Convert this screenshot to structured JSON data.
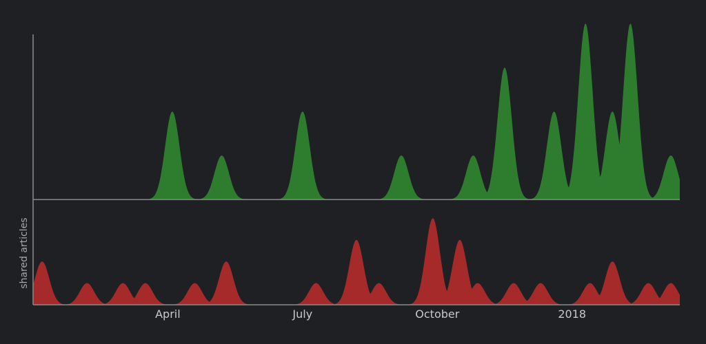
{
  "chart_data": {
    "type": "area",
    "title": "",
    "xlabel": "",
    "ylabel": "shared articles",
    "x_ticks": [
      "April",
      "July",
      "October",
      "2018"
    ],
    "grid": false,
    "legend": "none",
    "series": [
      {
        "color": "#2e7d2e",
        "direction": "up",
        "x": [
          2.8,
          3.1,
          3.8,
          4.2,
          5.5,
          6.0,
          7.8,
          8.2,
          9.5,
          9.8,
          10.2,
          10.5,
          11.0,
          11.6,
          12.3,
          12.9,
          13.3,
          13.9,
          14.2
        ],
        "values": [
          0,
          2,
          0,
          1,
          0,
          2,
          0,
          1,
          0,
          1,
          0,
          3,
          0,
          2,
          4,
          2,
          4,
          0,
          1
        ]
      },
      {
        "color": "#a62a2a",
        "direction": "down",
        "x": [
          0.2,
          1.2,
          2.0,
          2.5,
          3.6,
          4.3,
          6.3,
          7.2,
          7.7,
          8.9,
          9.5,
          9.9,
          10.7,
          11.3,
          12.4,
          12.9,
          13.7,
          14.2
        ],
        "values": [
          2,
          1,
          1,
          1,
          1,
          2,
          1,
          3,
          1,
          4,
          3,
          1,
          1,
          1,
          1,
          2,
          1,
          1
        ]
      }
    ]
  }
}
